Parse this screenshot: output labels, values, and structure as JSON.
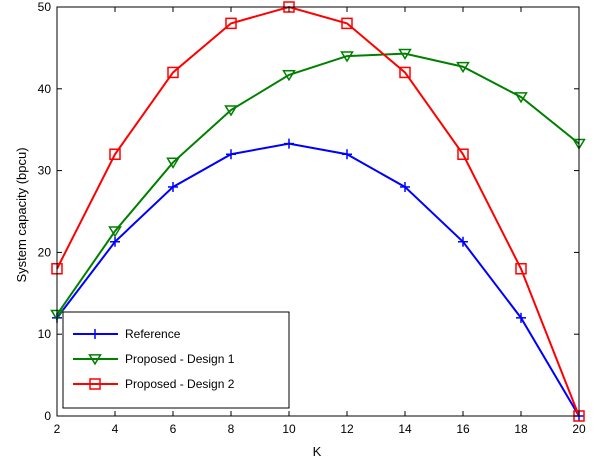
{
  "chart_data": {
    "type": "line",
    "xlabel": "K",
    "ylabel": "System capacity (bpcu)",
    "xlim": [
      2,
      20
    ],
    "ylim": [
      0,
      50
    ],
    "xticks": [
      2,
      4,
      6,
      8,
      10,
      12,
      14,
      16,
      18,
      20
    ],
    "yticks": [
      0,
      10,
      20,
      30,
      40,
      50
    ],
    "x": [
      2,
      4,
      6,
      8,
      10,
      12,
      14,
      16,
      18,
      20
    ],
    "grid": false,
    "legend_position": "bottom-left",
    "series": [
      {
        "name": "Reference",
        "color": "#0000ff",
        "marker": "plus",
        "values": [
          12,
          21.3,
          28,
          32,
          33.3,
          32,
          28,
          21.3,
          12,
          0
        ]
      },
      {
        "name": "Proposed - Design 1",
        "color": "#008000",
        "marker": "triangle-down",
        "values": [
          12.4,
          22.6,
          31,
          37.4,
          41.7,
          44,
          44.3,
          42.7,
          39,
          33.3
        ]
      },
      {
        "name": "Proposed - Design 2",
        "color": "#ff0000",
        "marker": "square",
        "values": [
          18,
          32,
          42,
          48,
          50,
          48,
          42,
          32,
          18,
          0
        ]
      }
    ]
  }
}
